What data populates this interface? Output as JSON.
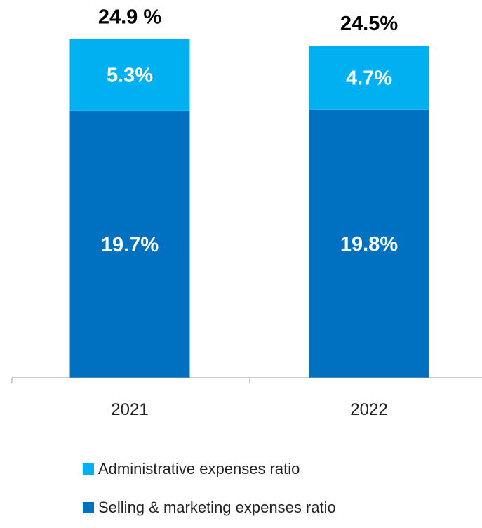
{
  "chart_data": {
    "type": "bar",
    "stacked": true,
    "categories": [
      "2021",
      "2022"
    ],
    "series": [
      {
        "name": "Selling & marketing expenses ratio",
        "values": [
          19.7,
          19.8
        ],
        "labels": [
          "19.7%",
          "19.8%"
        ],
        "color": "#0070C0"
      },
      {
        "name": "Administrative expenses ratio",
        "values": [
          5.3,
          4.7
        ],
        "labels": [
          "5.3%",
          "4.7%"
        ],
        "color": "#00B0F0"
      }
    ],
    "totals": [
      24.9,
      24.5
    ],
    "total_labels": [
      "24.9 %",
      "24.5%"
    ],
    "legend_position": "bottom",
    "grid": false
  }
}
